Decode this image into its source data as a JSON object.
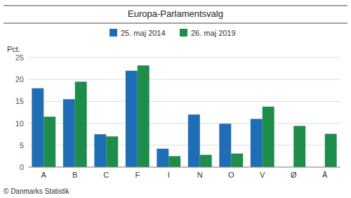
{
  "chart_data": {
    "type": "bar",
    "title": "Europa-Parlamentsvalg",
    "categories": [
      "A",
      "B",
      "C",
      "F",
      "I",
      "N",
      "O",
      "V",
      "Ø",
      "Å"
    ],
    "series": [
      {
        "name": "25. maj 2014",
        "color": "#1f6db5",
        "values": [
          18.0,
          15.5,
          7.5,
          22.0,
          4.2,
          12.0,
          9.9,
          11.0,
          0.0,
          0.0
        ]
      },
      {
        "name": "26. maj 2019",
        "color": "#1e8c4a",
        "values": [
          11.5,
          19.5,
          7.0,
          23.2,
          2.5,
          2.8,
          3.1,
          13.8,
          9.4,
          7.6
        ]
      }
    ],
    "ylabel": "Pct.",
    "ylim": [
      0,
      25
    ],
    "yticks": [
      0,
      5,
      10,
      15,
      20,
      25
    ],
    "grid": true,
    "legend": "top",
    "annotations": [
      "© Danmarks Statistik"
    ]
  }
}
